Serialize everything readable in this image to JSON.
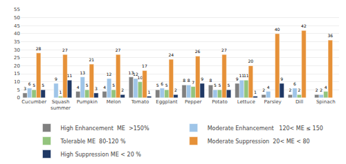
{
  "chart_data": {
    "type": "bar",
    "categories": [
      "Cucumber",
      "Squash\nsummer",
      "Pumpkin",
      "Melon",
      "Tomato",
      "Eggplant",
      "Pepper",
      "Potato",
      "Lettuce",
      "Parsley",
      "Dill",
      "Spinach"
    ],
    "series": [
      {
        "name": "High Enhancement  ME  >150%",
        "color": "#808080",
        "values": [
          3,
          0,
          4,
          4,
          13,
          5,
          8,
          8,
          9,
          2,
          2,
          2
        ],
        "value_labels": [
          "3",
          null,
          "4",
          "4",
          "13",
          "5",
          "8",
          "8",
          "9",
          "2",
          "2",
          "2"
        ]
      },
      {
        "name": "Moderate Enhancement   120< ME ≤ 150",
        "color": "#9fc5e8",
        "values": [
          6,
          9,
          13,
          12,
          12,
          6,
          8,
          5,
          11,
          4,
          6,
          2
        ],
        "value_labels": [
          "6",
          "9",
          "13",
          "12",
          "12",
          "6",
          "8",
          "5",
          "11",
          "4",
          "6",
          "2"
        ]
      },
      {
        "name": "Tolerable ME  80-120 %",
        "color": "#93c47d",
        "values": [
          5,
          1,
          5,
          5,
          10,
          5,
          7,
          5,
          11,
          0,
          2,
          4
        ],
        "value_labels": [
          "5",
          "1",
          "5",
          "5",
          "10",
          "5",
          "7",
          "5",
          "11",
          null,
          "2",
          "4"
        ]
      },
      {
        "name": "Moderate Suppression  20< ME < 80",
        "color": "#e69138",
        "values": [
          28,
          27,
          21,
          27,
          17,
          24,
          26,
          27,
          20,
          40,
          42,
          36
        ],
        "value_labels": [
          "28",
          "27",
          "21",
          "27",
          "17",
          "24",
          "26",
          "27",
          "20",
          "40",
          "42",
          "36"
        ]
      },
      {
        "name": "High Suppression ME < 20 %",
        "color": "#1f3864",
        "values": [
          5,
          11,
          3,
          2,
          1,
          2,
          9,
          5,
          1,
          9,
          0,
          0
        ],
        "value_labels": [
          "5",
          "11",
          "3",
          "2",
          "1",
          "2",
          "9",
          "5",
          "1",
          "9",
          null,
          null
        ]
      }
    ],
    "ylim": [
      0,
      55
    ],
    "yticks": [
      0,
      5,
      10,
      15,
      20,
      25,
      30,
      35,
      40,
      45,
      50,
      55
    ],
    "grid": true,
    "data_labels": true,
    "legend": "bottom"
  }
}
